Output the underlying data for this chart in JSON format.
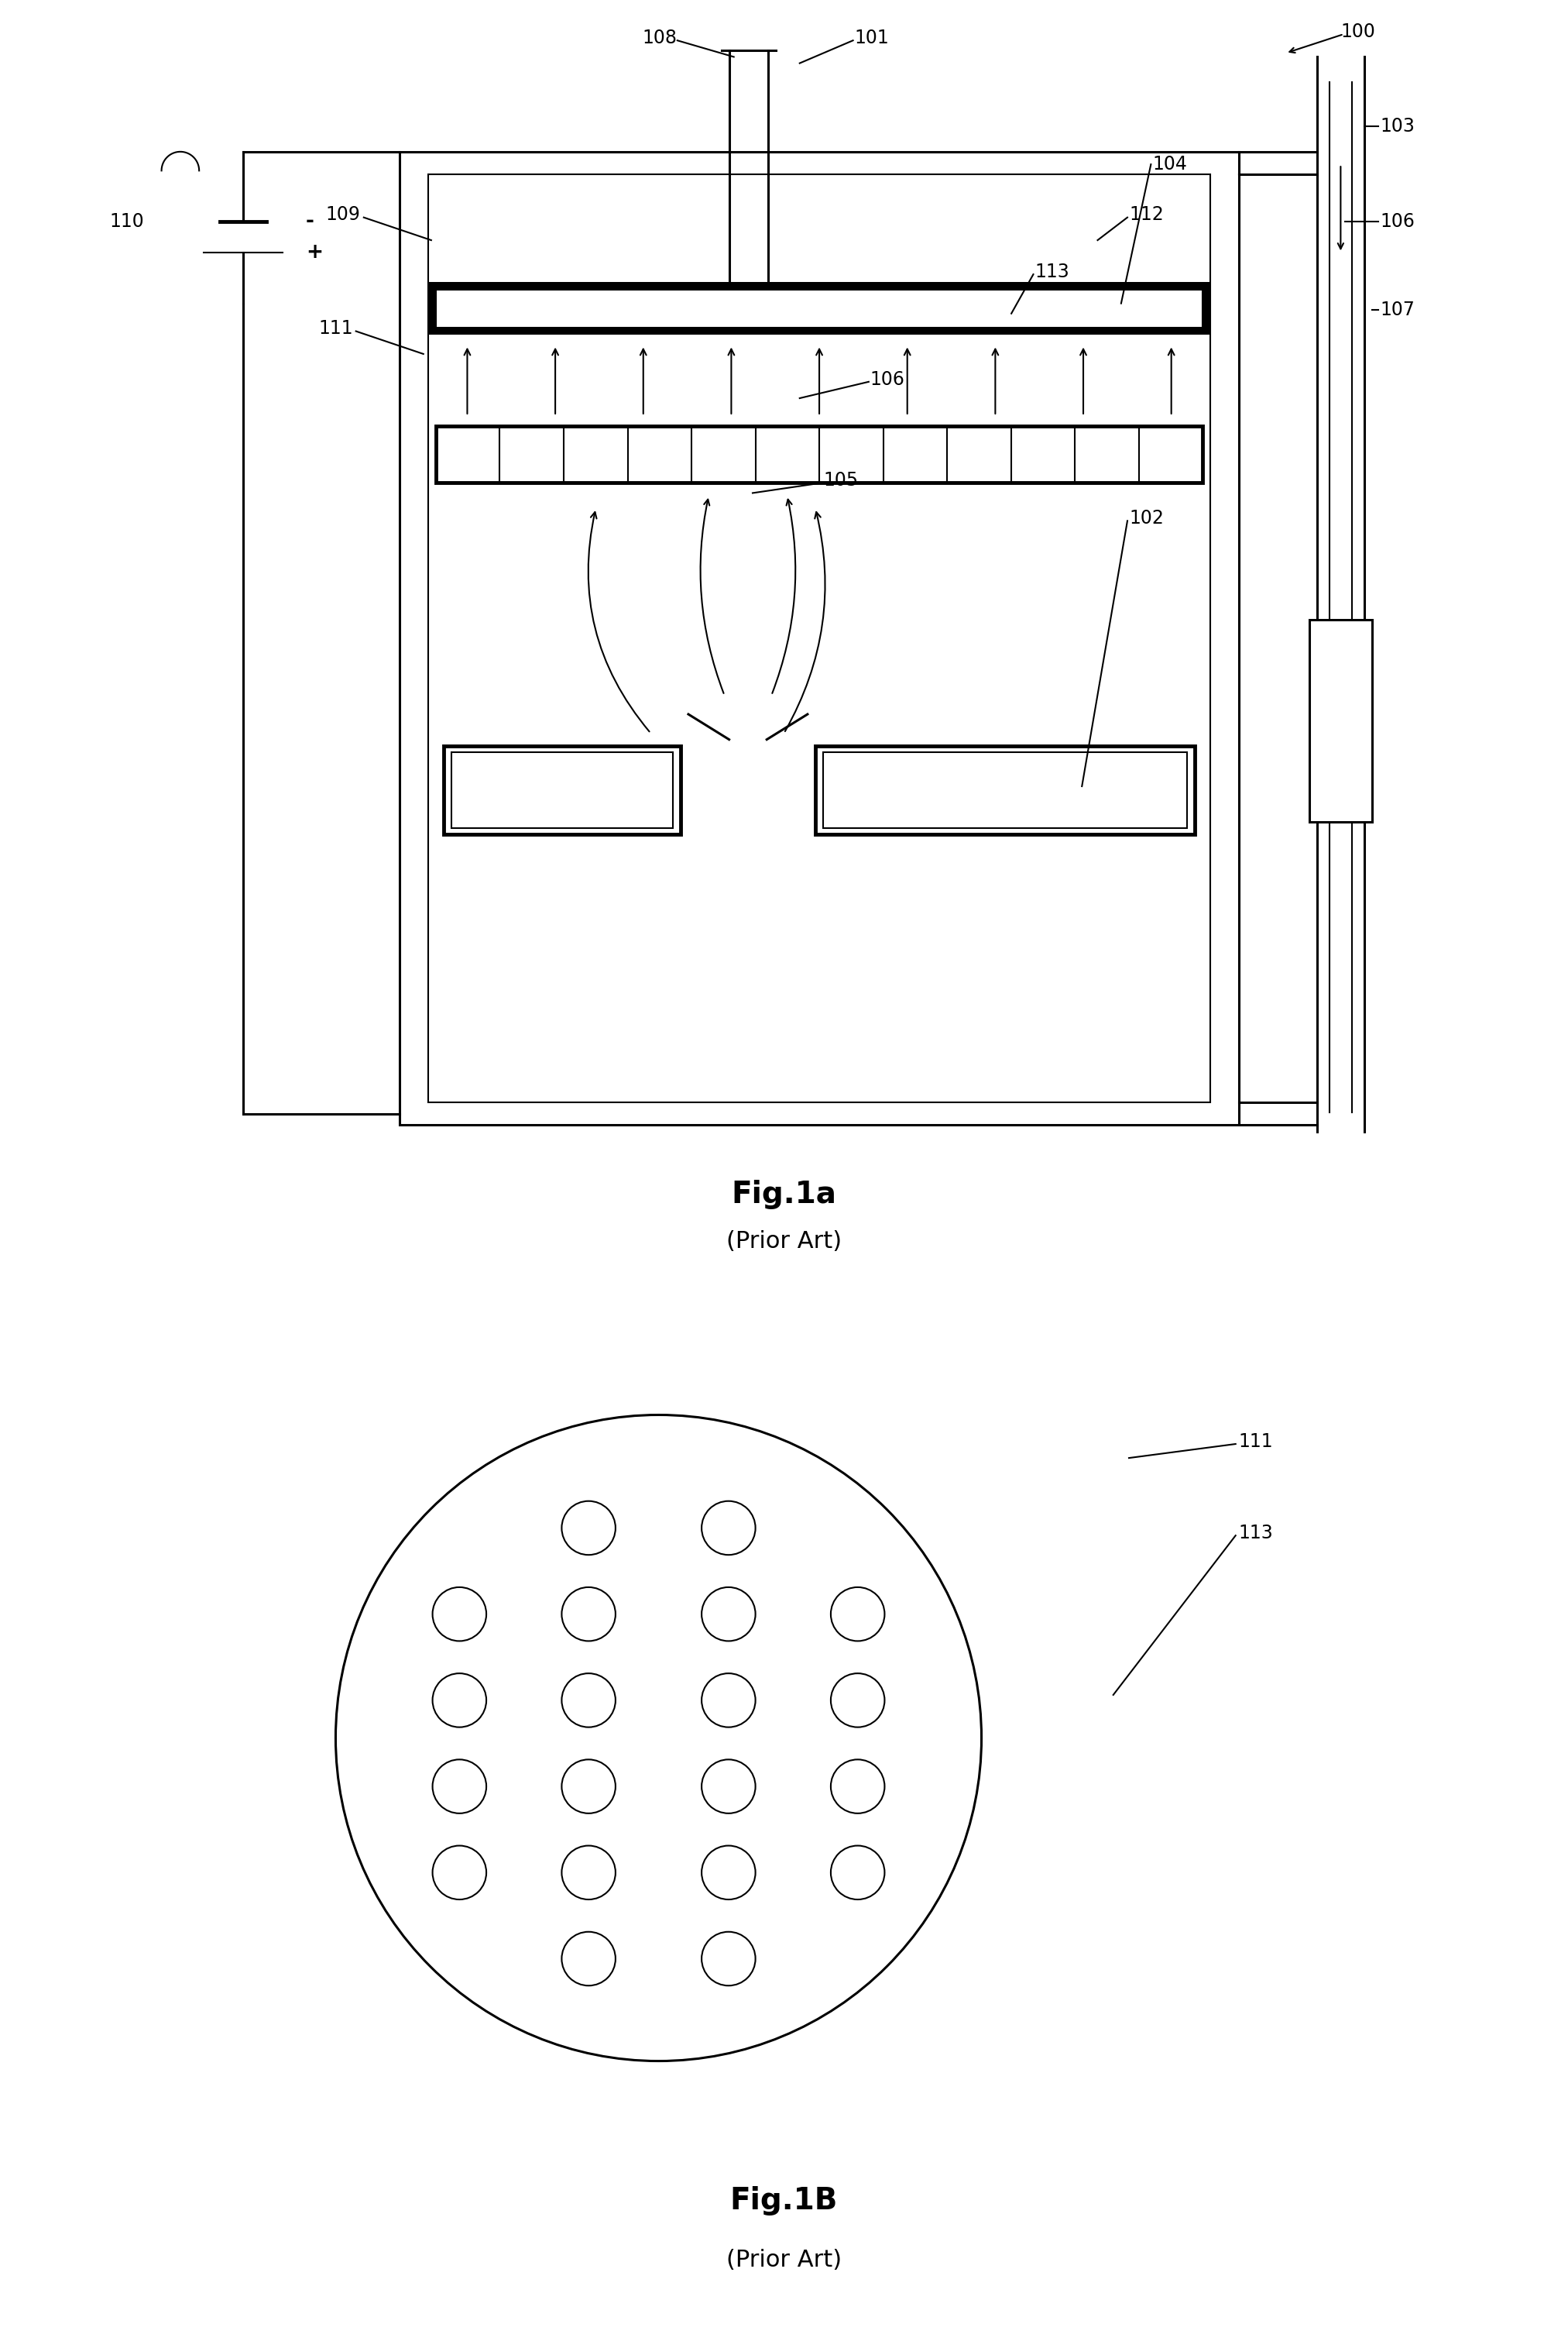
{
  "bg_color": "#ffffff",
  "lw_thick": 3.5,
  "lw_medium": 2.2,
  "lw_thin": 1.5,
  "label_fs": 17,
  "title_fs": 28,
  "subtitle_fs": 22,
  "fig1a_title": "Fig.1a",
  "fig1a_subtitle": "(Prior Art)",
  "fig1b_title": "Fig.1B",
  "fig1b_subtitle": "(Prior Art)"
}
